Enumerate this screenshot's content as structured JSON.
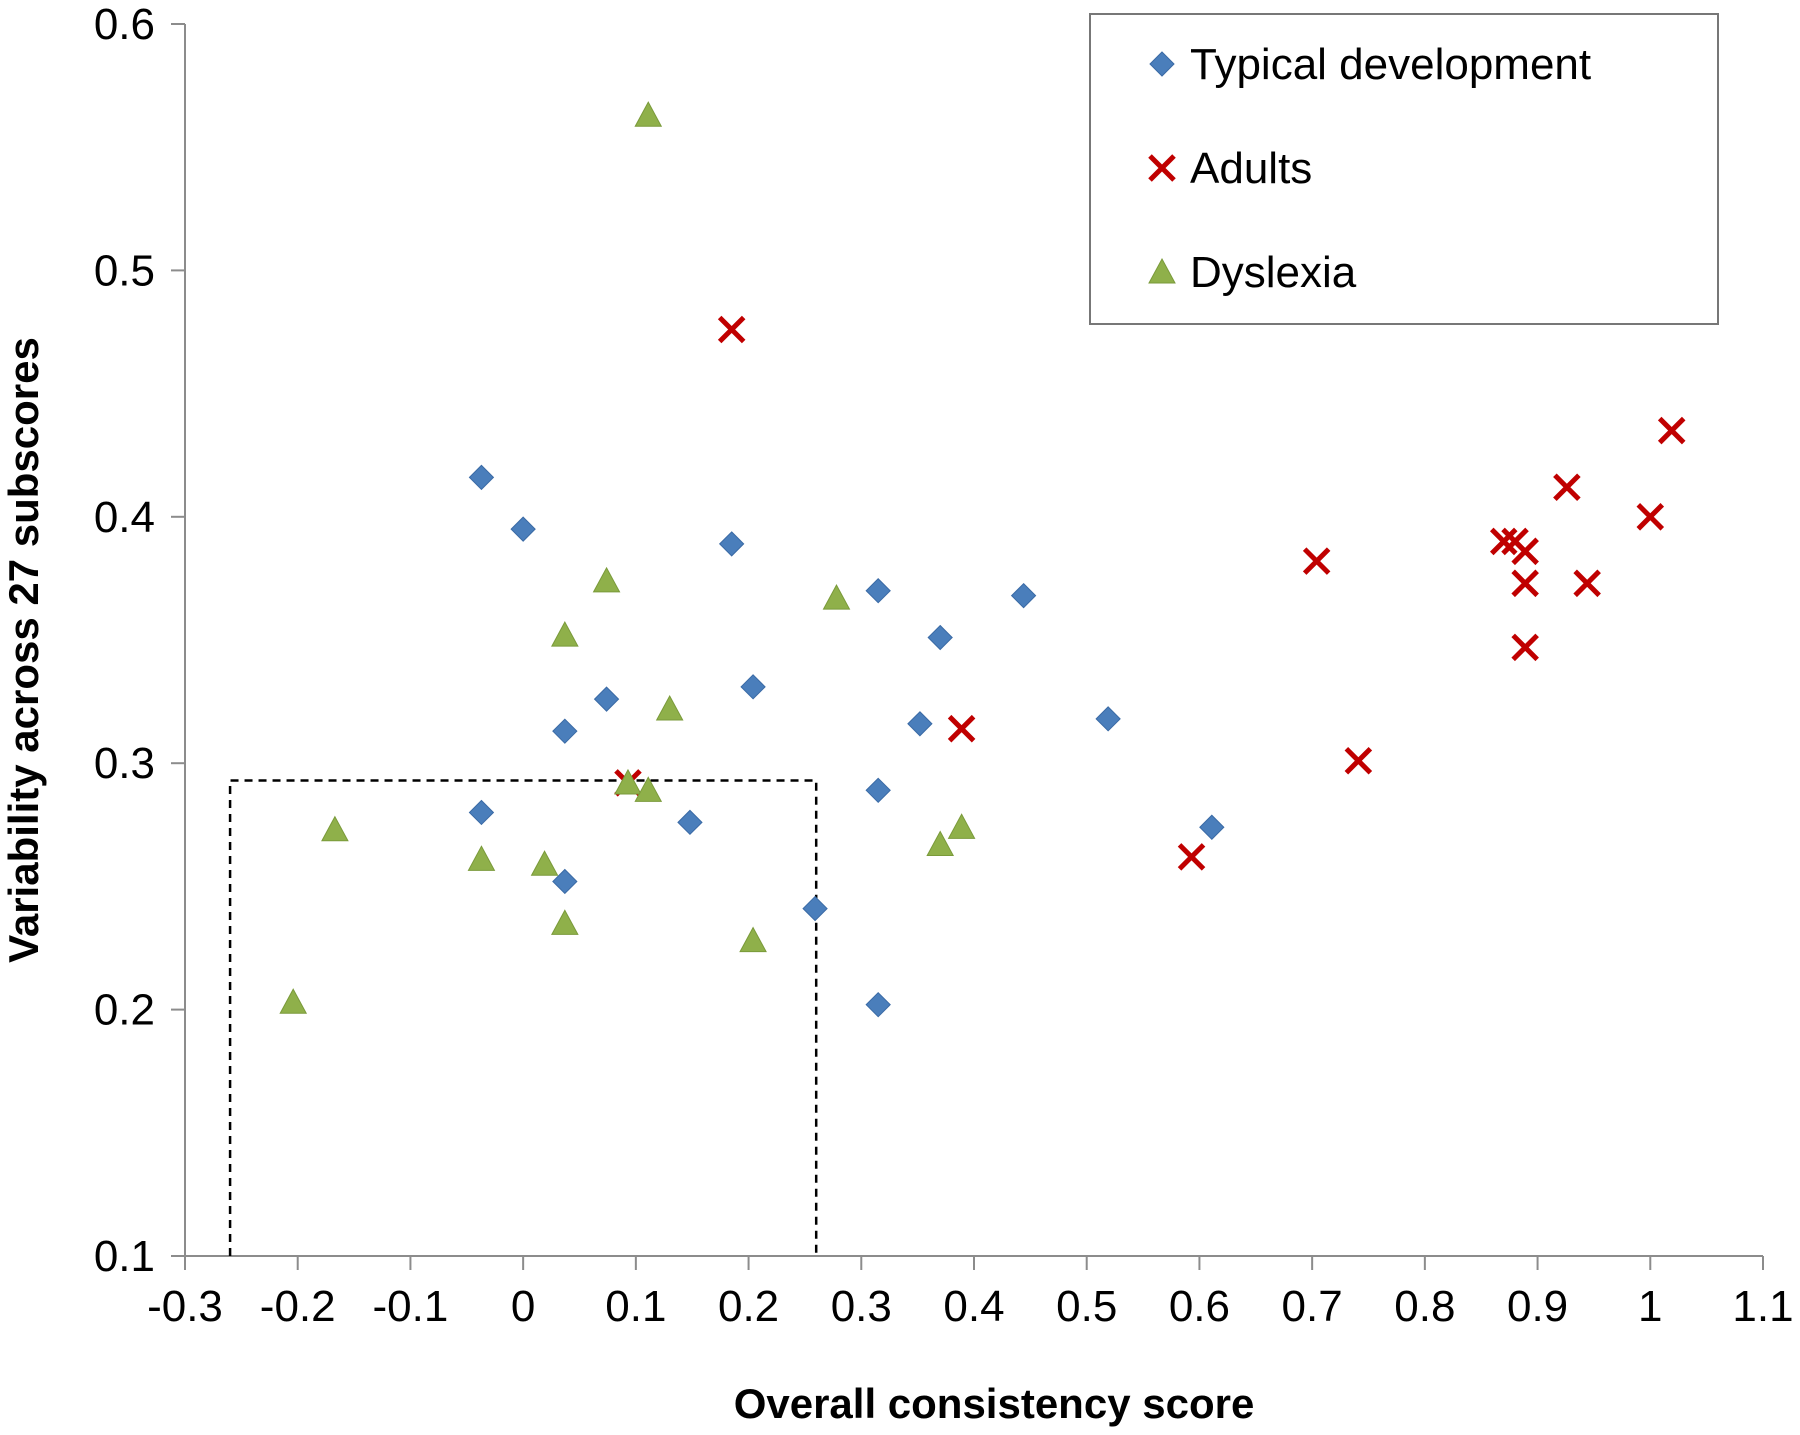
{
  "chart_data": {
    "type": "scatter",
    "title": "",
    "xlabel": "Overall consistency score",
    "ylabel": "Variability across 27 subscores",
    "xlim": [
      -0.3,
      1.1
    ],
    "ylim": [
      0.1,
      0.6
    ],
    "grid": false,
    "legend_position": "top-right",
    "x_ticks": [
      -0.3,
      -0.2,
      -0.1,
      0,
      0.1,
      0.2,
      0.3,
      0.4,
      0.5,
      0.6,
      0.7,
      0.8,
      0.9,
      1,
      1.1
    ],
    "x_tick_labels": [
      "-0.3",
      "-0.2",
      "-0.1",
      "0",
      "0.1",
      "0.2",
      "0.3",
      "0.4",
      "0.5",
      "0.6",
      "0.7",
      "0.8",
      "0.9",
      "1",
      "1.1"
    ],
    "y_ticks": [
      0.1,
      0.2,
      0.3,
      0.4,
      0.5,
      0.6
    ],
    "y_tick_labels": [
      "0.1",
      "0.2",
      "0.3",
      "0.4",
      "0.5",
      "0.6"
    ],
    "series": [
      {
        "name": "Typical development",
        "marker": "diamond",
        "color": "#4a7ebb",
        "points": [
          [
            -0.037,
            0.416
          ],
          [
            0.0,
            0.395
          ],
          [
            0.185,
            0.389
          ],
          [
            0.315,
            0.37
          ],
          [
            0.444,
            0.368
          ],
          [
            0.37,
            0.351
          ],
          [
            0.204,
            0.331
          ],
          [
            0.074,
            0.326
          ],
          [
            0.352,
            0.316
          ],
          [
            0.519,
            0.318
          ],
          [
            0.037,
            0.313
          ],
          [
            0.315,
            0.289
          ],
          [
            -0.037,
            0.28
          ],
          [
            0.148,
            0.276
          ],
          [
            0.611,
            0.274
          ],
          [
            0.037,
            0.252
          ],
          [
            0.259,
            0.241
          ],
          [
            0.315,
            0.202
          ]
        ]
      },
      {
        "name": "Adults",
        "marker": "x",
        "color": "#c00000",
        "points": [
          [
            0.185,
            0.476
          ],
          [
            1.019,
            0.435
          ],
          [
            0.926,
            0.412
          ],
          [
            1.0,
            0.4
          ],
          [
            0.87,
            0.39
          ],
          [
            0.88,
            0.39
          ],
          [
            0.889,
            0.386
          ],
          [
            0.704,
            0.382
          ],
          [
            0.889,
            0.373
          ],
          [
            0.944,
            0.373
          ],
          [
            0.889,
            0.347
          ],
          [
            0.389,
            0.314
          ],
          [
            0.741,
            0.301
          ],
          [
            0.093,
            0.292
          ],
          [
            0.593,
            0.262
          ]
        ]
      },
      {
        "name": "Dyslexia",
        "marker": "triangle",
        "color": "#8fb04a",
        "points": [
          [
            0.111,
            0.563
          ],
          [
            0.074,
            0.374
          ],
          [
            0.278,
            0.367
          ],
          [
            0.037,
            0.352
          ],
          [
            0.13,
            0.322
          ],
          [
            0.093,
            0.292
          ],
          [
            0.111,
            0.289
          ],
          [
            -0.167,
            0.273
          ],
          [
            0.389,
            0.274
          ],
          [
            0.37,
            0.267
          ],
          [
            -0.037,
            0.261
          ],
          [
            0.019,
            0.259
          ],
          [
            0.037,
            0.235
          ],
          [
            0.204,
            0.228
          ],
          [
            -0.204,
            0.203
          ]
        ]
      }
    ],
    "annotations": [
      {
        "type": "dashed-rectangle",
        "x": [
          -0.26,
          0.26
        ],
        "y": [
          0.1,
          0.293
        ]
      }
    ]
  }
}
